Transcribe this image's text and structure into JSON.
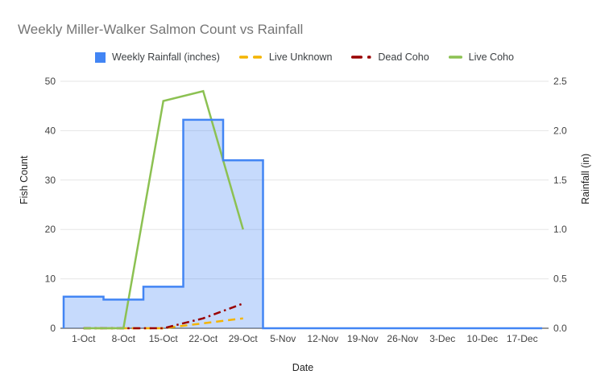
{
  "title": "Weekly Miller-Walker Salmon Count vs Rainfall",
  "legend": [
    {
      "label": "Weekly Rainfall (inches)",
      "marker": "square",
      "color": "#4285f4"
    },
    {
      "label": "Live Unknown",
      "marker": "dashed",
      "color": "#f4b400"
    },
    {
      "label": "Dead Coho",
      "marker": "dashdot",
      "color": "#990000"
    },
    {
      "label": "Live Coho",
      "marker": "solid",
      "color": "#8cc152"
    }
  ],
  "chart_data": {
    "type": "combo: stepped-area + lines",
    "categories": [
      "1-Oct",
      "8-Oct",
      "15-Oct",
      "22-Oct",
      "29-Oct",
      "5-Nov",
      "12-Nov",
      "19-Nov",
      "26-Nov",
      "3-Dec",
      "10-Dec",
      "17-Dec"
    ],
    "series": [
      {
        "name": "Weekly Rainfall (inches)",
        "type": "stepped-area",
        "axis": "right",
        "color": "#4285f4",
        "fill": "rgba(66,133,244,0.3)",
        "values": [
          0.32,
          0.29,
          0.42,
          2.11,
          1.7,
          0,
          0,
          0,
          0,
          0,
          0,
          0
        ]
      },
      {
        "name": "Live Unknown",
        "type": "line",
        "style": "dashed",
        "axis": "left",
        "color": "#f4b400",
        "values": [
          0,
          0,
          0,
          1,
          2,
          null,
          null,
          null,
          null,
          null,
          null,
          null
        ]
      },
      {
        "name": "Dead Coho",
        "type": "line",
        "style": "dashdot",
        "axis": "left",
        "color": "#990000",
        "values": [
          0,
          0,
          0,
          2,
          5,
          null,
          null,
          null,
          null,
          null,
          null,
          null
        ]
      },
      {
        "name": "Live Coho",
        "type": "line",
        "style": "solid",
        "axis": "left",
        "color": "#8cc152",
        "values": [
          0,
          0,
          46,
          48,
          20,
          null,
          null,
          null,
          null,
          null,
          null,
          null
        ]
      }
    ],
    "left_axis": {
      "title": "Fish Count",
      "ticks": [
        0,
        10,
        20,
        30,
        40,
        50
      ],
      "range": [
        0,
        50
      ]
    },
    "right_axis": {
      "title": "Rainfall (in)",
      "ticks": [
        "0.0",
        "0.5",
        "1.0",
        "1.5",
        "2.0",
        "2.5"
      ],
      "range": [
        0,
        2.5
      ]
    },
    "x_axis": {
      "title": "Date"
    },
    "grid": "horizontal",
    "legend_position": "top"
  },
  "colors": {
    "title_text": "#757575",
    "tick_text": "#424242",
    "gridline": "#e6e6e6",
    "baseline": "#333333",
    "background": "#ffffff"
  }
}
